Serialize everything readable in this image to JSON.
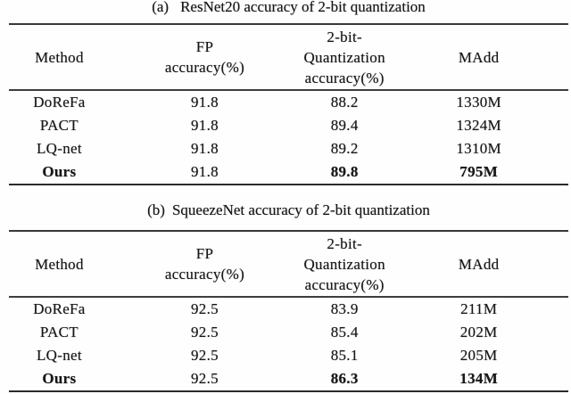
{
  "page": {
    "background": "#fefefe",
    "text_color": "#171717",
    "rule_color": "#2b2b2b"
  },
  "tables": [
    {
      "caption_label": "(a)",
      "caption_text": "ResNet20 accuracy of 2-bit quantization",
      "columns": [
        "Method",
        "FP\naccuracy(%)",
        "2-bit-\nQuantization\naccuracy(%)",
        "MAdd"
      ],
      "rows": [
        {
          "method": "DoReFa",
          "fp": "91.8",
          "q2": "88.2",
          "madd": "1330M"
        },
        {
          "method": "PACT",
          "fp": "91.8",
          "q2": "89.4",
          "madd": "1324M"
        },
        {
          "method": "LQ-net",
          "fp": "91.8",
          "q2": "89.2",
          "madd": "1310M"
        },
        {
          "method": "Ours",
          "fp": "91.8",
          "q2": "89.8",
          "madd": "795M"
        }
      ],
      "highlight_row": "Ours"
    },
    {
      "caption_label": "(b)",
      "caption_text": "SqueezeNet accuracy of 2-bit quantization",
      "columns": [
        "Method",
        "FP\naccuracy(%)",
        "2-bit-\nQuantization\naccuracy(%)",
        "MAdd"
      ],
      "rows": [
        {
          "method": "DoReFa",
          "fp": "92.5",
          "q2": "83.9",
          "madd": "211M"
        },
        {
          "method": "PACT",
          "fp": "92.5",
          "q2": "85.4",
          "madd": "202M"
        },
        {
          "method": "LQ-net",
          "fp": "92.5",
          "q2": "85.1",
          "madd": "205M"
        },
        {
          "method": "Ours",
          "fp": "92.5",
          "q2": "86.3",
          "madd": "134M"
        }
      ],
      "highlight_row": "Ours"
    }
  ]
}
